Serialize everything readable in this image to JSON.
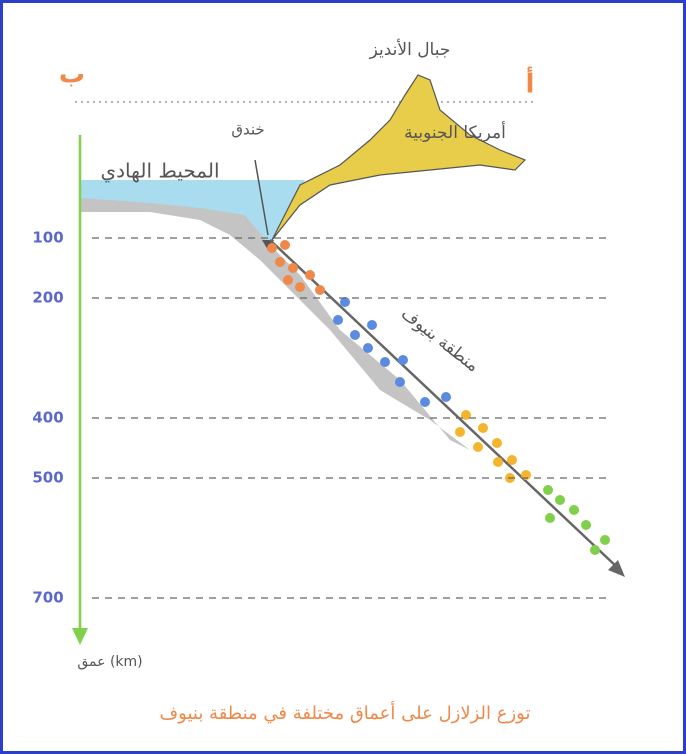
{
  "labels": {
    "point_b": "ب",
    "point_a": "أ",
    "mountains": "جبال الأنديز",
    "continent": "أمريكا الجنوبية",
    "trench": "خندق",
    "ocean": "المحيط الهادي",
    "zone": "منطقة بنيوف",
    "axis": "عمق (km)"
  },
  "depth_ticks": [
    100,
    200,
    400,
    500,
    700
  ],
  "caption": "توزع الزلازل على أعماق مختلفة في منطقة بنيوف"
}
